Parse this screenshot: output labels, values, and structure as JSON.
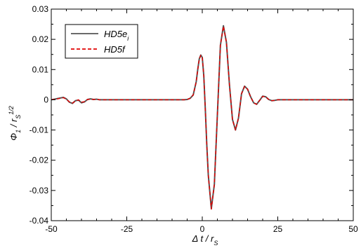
{
  "chart_data": {
    "type": "line",
    "title": "",
    "xlabel": "Δ t / r",
    "xlabel_sub": "S",
    "ylabel": "Φ",
    "ylabel_sub1": "1",
    "ylabel_mid": " / r",
    "ylabel_sub2": "S",
    "ylabel_sup": "1/2",
    "xlim": [
      -50,
      50
    ],
    "ylim": [
      -0.04,
      0.03
    ],
    "x_ticks": [
      -50,
      -25,
      0,
      25,
      50
    ],
    "x_tick_labels": [
      "-50",
      "-25",
      "0",
      "25",
      "50"
    ],
    "y_ticks": [
      -0.04,
      -0.03,
      -0.02,
      -0.01,
      0,
      0.01,
      0.02,
      0.03
    ],
    "y_tick_labels": [
      "-0.04",
      "-0.03",
      "-0.02",
      "-0.01",
      "0",
      "0.01",
      "0.02",
      "0.03"
    ],
    "grid": false,
    "legend_position": "top-left",
    "series": [
      {
        "name": "HD5e",
        "name_sub": "i",
        "color": "#555555",
        "style": "solid",
        "x": [
          -50,
          -48,
          -46,
          -45,
          -44,
          -43,
          -42,
          -41,
          -40,
          -39,
          -38,
          -37,
          -36,
          -35,
          -34,
          -32,
          -30,
          -25,
          -20,
          -15,
          -10,
          -8,
          -6,
          -5,
          -4,
          -3,
          -2,
          -1.5,
          -1,
          -0.5,
          0,
          0.5,
          1,
          1.5,
          2,
          3,
          4,
          5,
          6,
          7,
          8,
          9,
          10,
          11,
          12,
          13,
          14,
          15,
          16,
          17,
          18,
          19,
          20,
          21,
          22,
          23,
          24,
          25,
          30,
          40,
          50
        ],
        "y": [
          0,
          0.0004,
          0.0008,
          0.0003,
          -0.0008,
          -0.0012,
          -0.0003,
          -0.0001,
          -0.001,
          -0.0007,
          0.0001,
          0.0003,
          0.0001,
          0.0002,
          0,
          0,
          0,
          0,
          0,
          0,
          0,
          0,
          0,
          0.0001,
          0.0005,
          0.0016,
          0.006,
          0.01,
          0.0135,
          0.0148,
          0.014,
          0.008,
          -0.003,
          -0.015,
          -0.025,
          -0.036,
          -0.028,
          -0.005,
          0.018,
          0.0245,
          0.019,
          0.005,
          -0.0065,
          -0.01,
          -0.006,
          0.002,
          0.0045,
          0.0035,
          0.001,
          -0.001,
          -0.0015,
          -0.0002,
          0.0012,
          0.001,
          0.0001,
          -0.0003,
          -0.0002,
          0,
          0,
          0,
          0
        ]
      },
      {
        "name": "HD5f",
        "color": "#e00000",
        "style": "dashed",
        "x": [
          -50,
          -48,
          -46,
          -45,
          -44,
          -43,
          -42,
          -41,
          -40,
          -39,
          -38,
          -37,
          -36,
          -35,
          -34,
          -32,
          -30,
          -25,
          -20,
          -15,
          -10,
          -8,
          -6,
          -5,
          -4,
          -3,
          -2,
          -1.5,
          -1,
          -0.5,
          0,
          0.5,
          1,
          1.5,
          2,
          3,
          4,
          5,
          6,
          7,
          8,
          9,
          10,
          11,
          12,
          13,
          14,
          15,
          16,
          17,
          18,
          19,
          20,
          21,
          22,
          23,
          24,
          25,
          30,
          40,
          50
        ],
        "y": [
          0,
          0.0003,
          0.0007,
          0.0002,
          -0.0007,
          -0.0011,
          -0.0004,
          0,
          -0.0008,
          -0.0006,
          0.0001,
          0.0002,
          0.0001,
          0.0002,
          0,
          0,
          0,
          0,
          0,
          0,
          0,
          0,
          0,
          0.0001,
          0.0005,
          0.0016,
          0.006,
          0.01,
          0.0134,
          0.0147,
          0.014,
          0.008,
          -0.003,
          -0.015,
          -0.025,
          -0.0362,
          -0.028,
          -0.005,
          0.018,
          0.0243,
          0.019,
          0.005,
          -0.0065,
          -0.01,
          -0.006,
          0.002,
          0.0044,
          0.0035,
          0.001,
          -0.001,
          -0.0015,
          -0.0002,
          0.0011,
          0.001,
          0.0001,
          -0.0003,
          -0.0002,
          0,
          0,
          0,
          0
        ]
      }
    ]
  }
}
